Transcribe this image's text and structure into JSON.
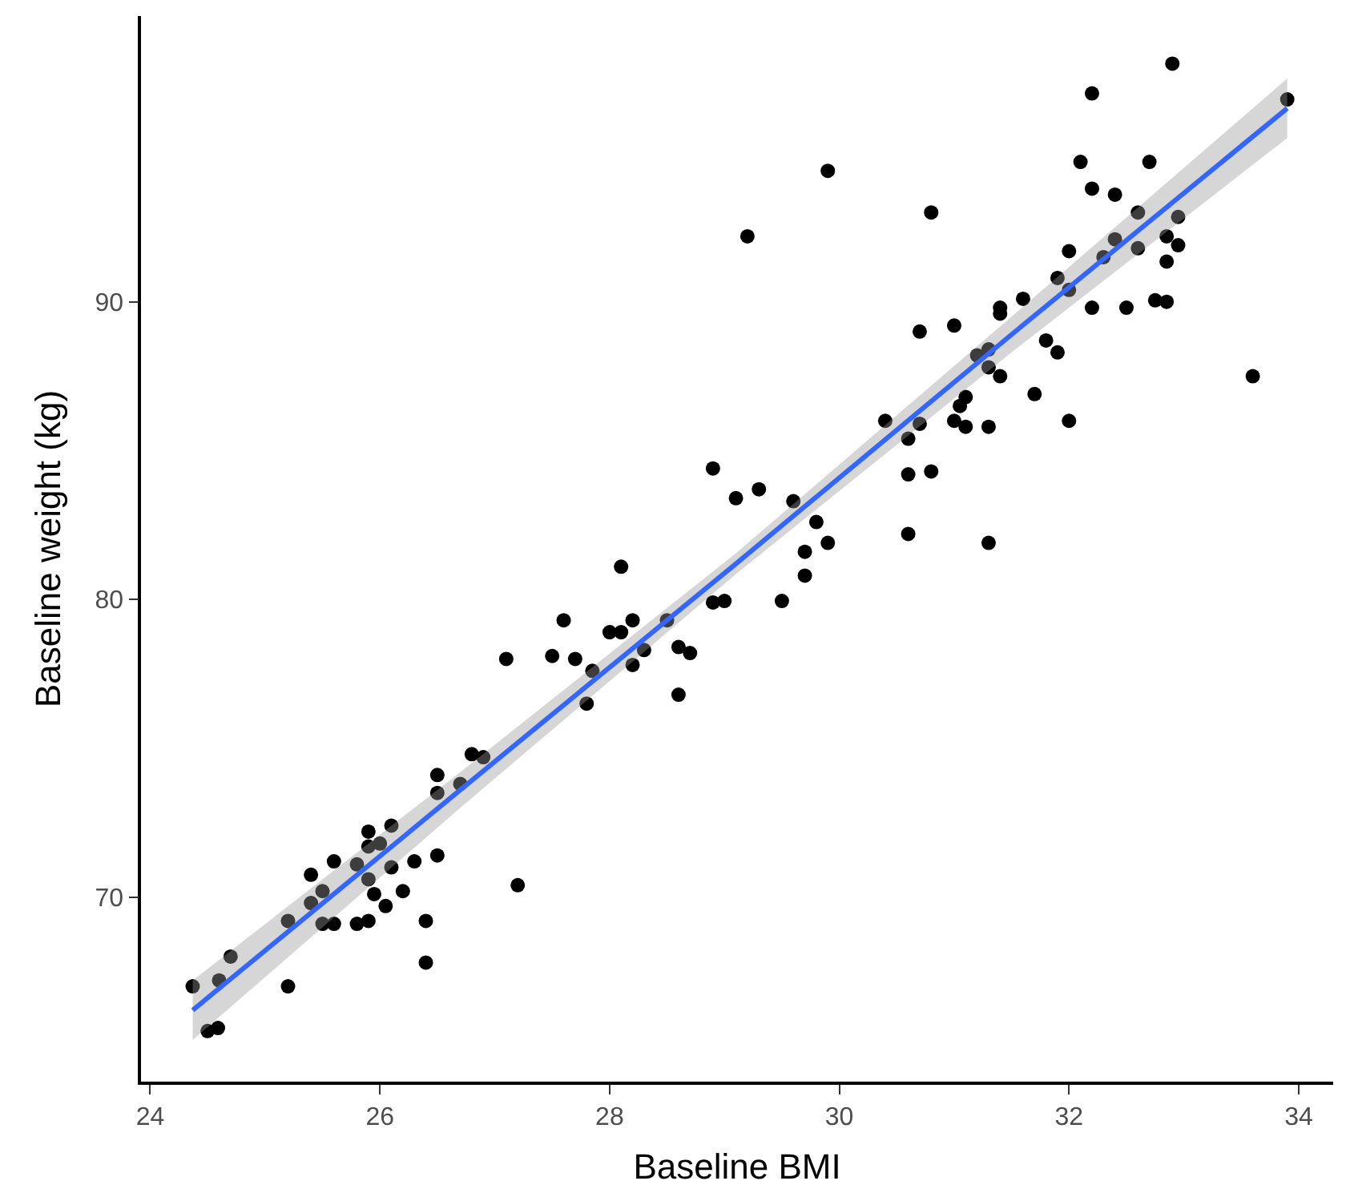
{
  "chart_data": {
    "type": "scatter",
    "xlabel": "Baseline BMI",
    "ylabel": "Baseline weight (kg)",
    "xlim": [
      23.92,
      34.3
    ],
    "ylim": [
      63.8,
      99.6
    ],
    "xticks": [
      24,
      26,
      28,
      30,
      32,
      34
    ],
    "yticks": [
      70,
      80,
      90
    ],
    "marker": "circle",
    "series": [
      {
        "color": "#000000",
        "x": [
          24.37,
          24.5,
          24.59,
          24.6,
          24.7,
          25.2,
          25.2,
          25.4,
          25.4,
          25.5,
          25.6,
          25.5,
          25.6,
          25.8,
          25.9,
          25.8,
          25.9,
          25.9,
          26.0,
          26.1,
          25.9,
          25.95,
          26.1,
          26.05,
          26.2,
          26.3,
          26.5,
          26.4,
          26.4,
          26.5,
          26.5,
          26.7,
          26.8,
          26.9,
          27.2,
          27.8,
          27.1,
          27.5,
          27.6,
          27.7,
          27.85,
          28.0,
          28.1,
          28.1,
          28.2,
          28.2,
          28.3,
          28.5,
          28.6,
          28.7,
          28.6,
          28.9,
          28.9,
          29.0,
          29.1,
          29.3,
          29.6,
          29.8,
          29.9,
          29.7,
          29.7,
          29.5,
          29.2,
          29.9,
          30.4,
          30.6,
          30.7,
          30.6,
          30.8,
          30.6,
          31.3,
          30.7,
          30.8,
          31.0,
          31.1,
          31.05,
          31.0,
          31.1,
          31.3,
          31.2,
          31.3,
          31.3,
          31.4,
          31.4,
          31.4,
          31.6,
          31.7,
          31.8,
          31.9,
          31.9,
          32.0,
          32.0,
          32.0,
          32.2,
          32.3,
          32.4,
          32.6,
          32.6,
          32.5,
          32.75,
          32.85,
          32.85,
          32.85,
          32.95,
          32.95,
          32.1,
          32.2,
          32.4,
          32.2,
          32.7,
          32.9,
          33.9,
          33.6
        ],
        "values": [
          67.0,
          65.5,
          65.6,
          67.2,
          68.0,
          67.0,
          69.2,
          70.75,
          69.8,
          70.2,
          71.2,
          69.1,
          69.1,
          69.1,
          69.2,
          71.1,
          72.2,
          71.7,
          71.8,
          72.4,
          70.6,
          70.1,
          71.0,
          69.7,
          70.2,
          71.2,
          71.4,
          69.2,
          67.8,
          73.5,
          74.1,
          73.8,
          74.8,
          74.7,
          70.4,
          76.5,
          78.0,
          78.1,
          79.3,
          78.0,
          77.6,
          78.9,
          78.9,
          81.1,
          79.3,
          77.8,
          78.3,
          79.3,
          78.4,
          78.2,
          76.8,
          84.4,
          79.9,
          79.95,
          83.4,
          83.7,
          83.3,
          82.6,
          81.9,
          81.6,
          80.8,
          79.95,
          92.2,
          94.4,
          86.0,
          85.4,
          85.9,
          84.2,
          84.3,
          82.2,
          81.9,
          89.0,
          93.0,
          89.2,
          86.8,
          86.5,
          86.0,
          85.8,
          85.8,
          88.2,
          88.4,
          87.8,
          87.5,
          89.8,
          89.6,
          90.1,
          86.9,
          88.7,
          88.3,
          90.8,
          86.0,
          91.7,
          90.4,
          89.8,
          91.5,
          92.1,
          93.0,
          91.8,
          89.8,
          90.05,
          90.0,
          91.35,
          92.2,
          92.85,
          91.9,
          94.7,
          93.8,
          93.6,
          97.0,
          94.7,
          98.0,
          96.8,
          87.5
        ]
      },
      {
        "type": "line",
        "color": "#3366ff",
        "marker": "none",
        "x": [
          24.37,
          26.7,
          29.1,
          31.5,
          33.9
        ],
        "values": [
          66.2,
          73.6,
          81.2,
          88.9,
          96.5
        ],
        "lower": [
          65.2,
          73.0,
          80.85,
          88.3,
          95.5
        ],
        "upper": [
          67.2,
          74.2,
          81.55,
          89.5,
          97.5
        ]
      }
    ]
  }
}
